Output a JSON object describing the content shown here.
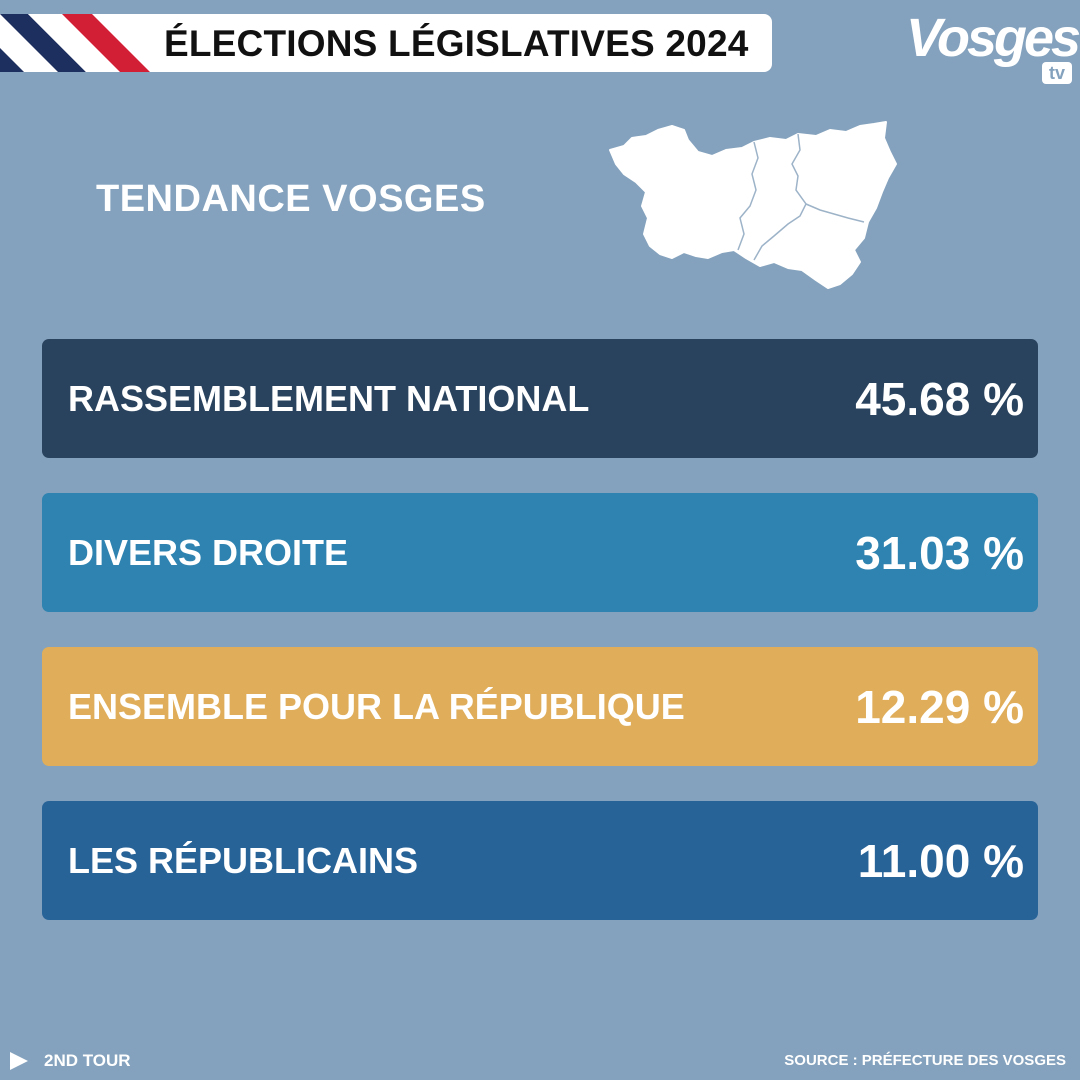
{
  "header": {
    "title": "ÉLECTIONS LÉGISLATIVES 2024"
  },
  "brand": {
    "name": "Vosges",
    "suffix": "tv"
  },
  "subtitle": "TENDANCE VOSGES",
  "results": [
    {
      "party": "RASSEMBLEMENT NATIONAL",
      "value": "45.68 %",
      "color": "#29435e"
    },
    {
      "party": "DIVERS DROITE",
      "value": "31.03 %",
      "color": "#2e83b0"
    },
    {
      "party": "ENSEMBLE POUR LA RÉPUBLIQUE",
      "value": "12.29 %",
      "color": "#e0ae5a"
    },
    {
      "party": "LES RÉPUBLICAINS",
      "value": "11.00 %",
      "color": "#286398"
    }
  ],
  "footer": {
    "round": "2ND TOUR",
    "source": "SOURCE : PRÉFECTURE DES VOSGES",
    "icon": "play-icon"
  },
  "colors": {
    "background": "#84a2bd",
    "flag_blue": "#1d2f5e",
    "flag_red": "#d31f35"
  }
}
